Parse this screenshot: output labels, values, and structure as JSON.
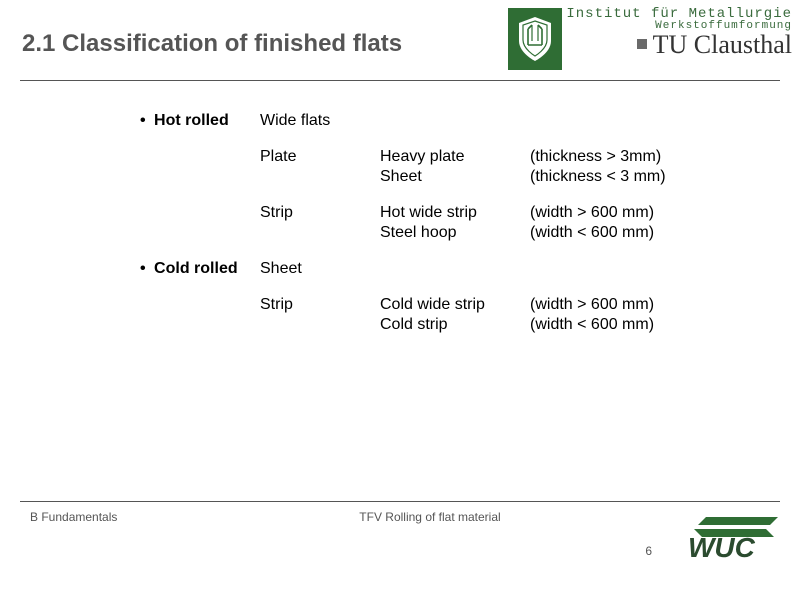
{
  "header": {
    "title": "2.1  Classification of finished flats",
    "institute": "Institut für Metallurgie",
    "department": "Werkstoffumformung",
    "university": "TU Clausthal"
  },
  "colors": {
    "brand_green": "#2f6d34",
    "text_gray": "#555555",
    "rule_gray": "#555555",
    "black": "#000000",
    "white": "#ffffff",
    "logo_dark": "#2b4b2f"
  },
  "content": {
    "rows": [
      {
        "cat": "Hot rolled",
        "sub": "Wide flats",
        "det": "",
        "spec": ""
      },
      {
        "gap": true
      },
      {
        "cat": "",
        "sub": "Plate",
        "det": "Heavy plate",
        "spec": "(thickness > 3mm)"
      },
      {
        "cat": "",
        "sub": "",
        "det": "Sheet",
        "spec": "(thickness < 3 mm)"
      },
      {
        "gap": true
      },
      {
        "cat": "",
        "sub": "Strip",
        "det": "Hot wide strip",
        "spec": "(width > 600 mm)"
      },
      {
        "cat": "",
        "sub": "",
        "det": "Steel hoop",
        "spec": "(width < 600 mm)"
      },
      {
        "gap": true
      },
      {
        "cat": "Cold rolled",
        "sub": "Sheet",
        "det": "",
        "spec": ""
      },
      {
        "gap": true
      },
      {
        "cat": "",
        "sub": "Strip",
        "det": "Cold wide strip",
        "spec": "(width > 600 mm)"
      },
      {
        "cat": "",
        "sub": "",
        "det": "Cold strip",
        "spec": "(width < 600 mm)"
      }
    ]
  },
  "footer": {
    "left": "B Fundamentals",
    "center": "TFV Rolling of flat material",
    "page": "6",
    "logo_text": "WUC"
  }
}
